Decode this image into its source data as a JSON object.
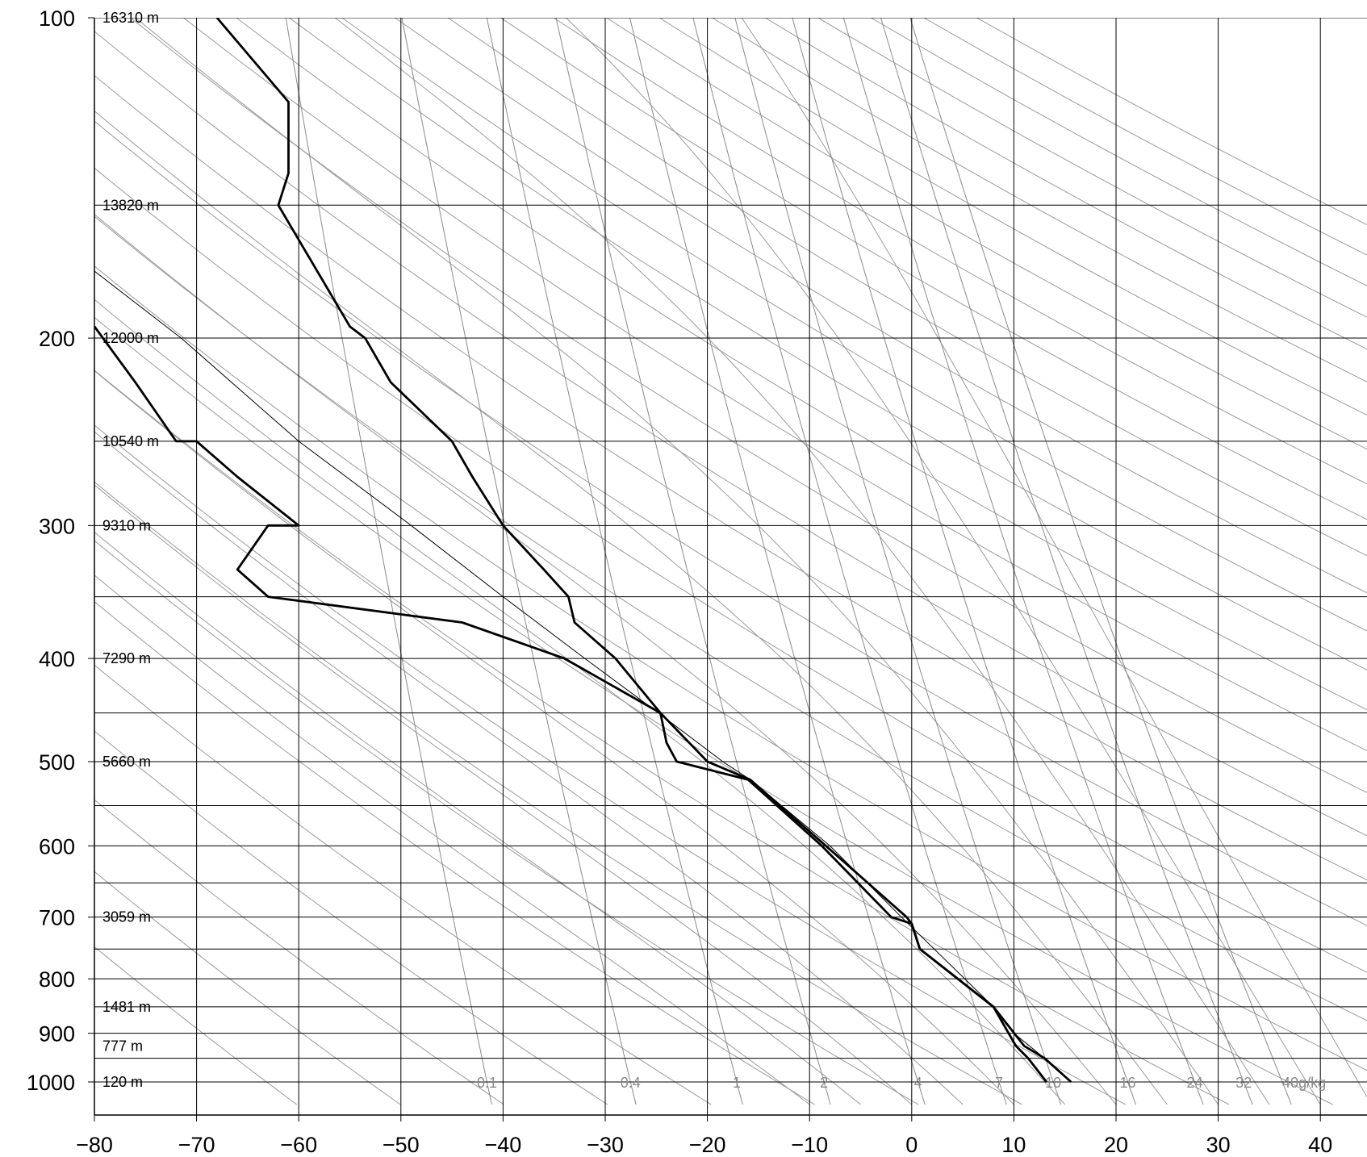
{
  "chart_data": {
    "type": "line",
    "title": "",
    "xlabel": "",
    "ylabel": "",
    "xlim": [
      -80,
      45
    ],
    "ylim": [
      1050,
      100
    ],
    "y_scale": "log",
    "grid": true,
    "x_ticks": [
      -80,
      -70,
      -60,
      -50,
      -40,
      -30,
      -20,
      -10,
      0,
      10,
      20,
      30,
      40
    ],
    "x_tick_labels": [
      "−80",
      "−70",
      "−60",
      "−50",
      "−40",
      "−30",
      "−20",
      "−10",
      "0",
      "10",
      "20",
      "30",
      "40"
    ],
    "y_ticks": [
      100,
      200,
      300,
      400,
      500,
      600,
      700,
      800,
      900,
      1000
    ],
    "y_tick_labels": [
      "100",
      "200",
      "300",
      "400",
      "500",
      "600",
      "700",
      "800",
      "900",
      "1000"
    ],
    "extra_isobars": [
      150,
      250,
      350,
      450,
      550,
      650,
      750,
      850,
      950
    ],
    "height_labels": [
      {
        "p": 100,
        "text": "16310 m"
      },
      {
        "p": 150,
        "text": "13820 m"
      },
      {
        "p": 200,
        "text": "12000 m"
      },
      {
        "p": 250,
        "text": "10540 m"
      },
      {
        "p": 300,
        "text": "9310 m"
      },
      {
        "p": 400,
        "text": "7290 m"
      },
      {
        "p": 500,
        "text": "5660 m"
      },
      {
        "p": 700,
        "text": "3059 m"
      },
      {
        "p": 850,
        "text": "1481 m"
      },
      {
        "p": 925,
        "text": "777 m"
      },
      {
        "p": 1000,
        "text": "120 m"
      }
    ],
    "mixing_ratio_lines": [
      {
        "w": 0.1,
        "label": "0.1"
      },
      {
        "w": 0.4,
        "label": "0.4"
      },
      {
        "w": 1,
        "label": "1"
      },
      {
        "w": 2,
        "label": "2"
      },
      {
        "w": 4,
        "label": "4"
      },
      {
        "w": 7,
        "label": "7"
      },
      {
        "w": 10,
        "label": "10"
      },
      {
        "w": 16,
        "label": "16"
      },
      {
        "w": 24,
        "label": "24"
      },
      {
        "w": 32,
        "label": "32"
      },
      {
        "w": 40,
        "label": "40g/kg"
      }
    ],
    "dry_adiabat_thetas": [
      210,
      220,
      230,
      240,
      250,
      260,
      270,
      280,
      290,
      300,
      310,
      320,
      330,
      340,
      350,
      360,
      370,
      380,
      390,
      400,
      410,
      420,
      430,
      440,
      450,
      460,
      470,
      480,
      490,
      500,
      510,
      520,
      530,
      540
    ],
    "series": [
      {
        "points": [
          {
            "p": 1000,
            "t": 13.2
          },
          {
            "p": 950,
            "t": 11.4
          },
          {
            "p": 925,
            "t": 10.2
          },
          {
            "p": 850,
            "t": 8.0
          },
          {
            "p": 750,
            "t": 0.8
          },
          {
            "p": 710,
            "t": 0.0
          },
          {
            "p": 700,
            "t": -2.0
          },
          {
            "p": 600,
            "t": -8.8
          },
          {
            "p": 520,
            "t": -16.0
          },
          {
            "p": 500,
            "t": -23.0
          },
          {
            "p": 480,
            "t": -24.0
          },
          {
            "p": 450,
            "t": -24.6
          },
          {
            "p": 400,
            "t": -29.0
          },
          {
            "p": 370,
            "t": -33.0
          },
          {
            "p": 350,
            "t": -33.6
          },
          {
            "p": 330,
            "t": -36.0
          },
          {
            "p": 300,
            "t": -40.0
          },
          {
            "p": 270,
            "t": -43.0
          },
          {
            "p": 250,
            "t": -45.0
          },
          {
            "p": 220,
            "t": -51.0
          },
          {
            "p": 200,
            "t": -53.5
          },
          {
            "p": 195,
            "t": -55.0
          },
          {
            "p": 150,
            "t": -62.0
          },
          {
            "p": 140,
            "t": -61.0
          },
          {
            "p": 120,
            "t": -61.0
          },
          {
            "p": 100,
            "t": -68.0
          }
        ]
      },
      {
        "points": [
          {
            "p": 1000,
            "t": 15.6
          },
          {
            "p": 950,
            "t": 13.0
          },
          {
            "p": 925,
            "t": 11.0
          },
          {
            "p": 850,
            "t": 8.0
          },
          {
            "p": 750,
            "t": 0.8
          },
          {
            "p": 710,
            "t": 0.0
          },
          {
            "p": 700,
            "t": -0.5
          },
          {
            "p": 600,
            "t": -8.4
          },
          {
            "p": 520,
            "t": -15.8
          },
          {
            "p": 500,
            "t": -20.0
          },
          {
            "p": 450,
            "t": -24.6
          },
          {
            "p": 400,
            "t": -34.0
          },
          {
            "p": 370,
            "t": -44.0
          },
          {
            "p": 350,
            "t": -63.0
          },
          {
            "p": 330,
            "t": -66.0
          },
          {
            "p": 300,
            "t": -63.0
          },
          {
            "p": 300,
            "t": -60.0
          },
          {
            "p": 270,
            "t": -66.0
          },
          {
            "p": 250,
            "t": -70.0
          },
          {
            "p": 250,
            "t": -72.0
          },
          {
            "p": 220,
            "t": -76.0
          },
          {
            "p": 195,
            "t": -80.0
          }
        ]
      },
      {
        "points": [
          {
            "p": 1000,
            "t": 15.6
          },
          {
            "p": 950,
            "t": 13.0
          },
          {
            "p": 900,
            "t": 10.0
          },
          {
            "p": 850,
            "t": 8.0
          },
          {
            "p": 700,
            "t": -1.0
          },
          {
            "p": 600,
            "t": -8.0
          },
          {
            "p": 520,
            "t": -15.8
          },
          {
            "p": 500,
            "t": -18.5
          },
          {
            "p": 450,
            "t": -24.8
          },
          {
            "p": 400,
            "t": -32.0
          },
          {
            "p": 350,
            "t": -40.0
          },
          {
            "p": 300,
            "t": -49.0
          },
          {
            "p": 250,
            "t": -60.0
          },
          {
            "p": 200,
            "t": -71.5
          },
          {
            "p": 173,
            "t": -80.0
          }
        ]
      }
    ]
  }
}
